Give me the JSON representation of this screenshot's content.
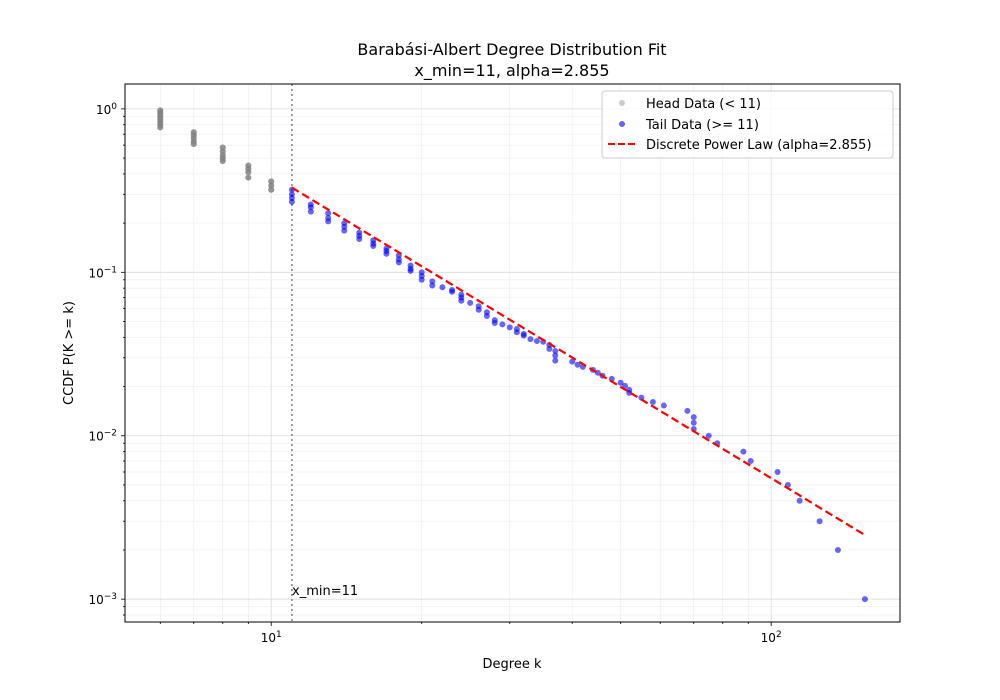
{
  "chart_data": {
    "type": "scatter",
    "title": "Barabási-Albert Degree Distribution Fit",
    "subtitle": "x_min=11, alpha=2.855",
    "xlabel": "Degree k",
    "ylabel": "CCDF P(K >= k)",
    "xscale": "log",
    "yscale": "log",
    "xlim": [
      5.1,
      181
    ],
    "ylim": [
      0.000725,
      1.42
    ],
    "grid": true,
    "legend_position": "top-right",
    "x_ticks": [
      {
        "base": "10",
        "exp": "1",
        "value": 10
      },
      {
        "base": "10",
        "exp": "2",
        "value": 100
      }
    ],
    "y_ticks": [
      {
        "base": "10",
        "exp": "0",
        "value": 1
      },
      {
        "base": "10",
        "exp": "−1",
        "value": 0.1
      },
      {
        "base": "10",
        "exp": "−2",
        "value": 0.01
      },
      {
        "base": "10",
        "exp": "−3",
        "value": 0.001
      }
    ],
    "x_min": 11,
    "alpha": 2.855,
    "annotation": "x_min=11",
    "series": [
      {
        "name": "Head Data (< 11)",
        "color": "#808080",
        "points": [
          [
            6,
            0.98
          ],
          [
            6,
            0.95
          ],
          [
            6,
            0.92
          ],
          [
            6,
            0.89
          ],
          [
            6,
            0.86
          ],
          [
            6,
            0.83
          ],
          [
            6,
            0.8
          ],
          [
            6,
            0.77
          ],
          [
            7,
            0.72
          ],
          [
            7,
            0.69
          ],
          [
            7,
            0.66
          ],
          [
            7,
            0.63
          ],
          [
            7,
            0.61
          ],
          [
            8,
            0.58
          ],
          [
            8,
            0.55
          ],
          [
            8,
            0.52
          ],
          [
            8,
            0.5
          ],
          [
            8,
            0.48
          ],
          [
            9,
            0.45
          ],
          [
            9,
            0.43
          ],
          [
            9,
            0.41
          ],
          [
            9,
            0.38
          ],
          [
            10,
            0.36
          ],
          [
            10,
            0.34
          ],
          [
            10,
            0.32
          ]
        ]
      },
      {
        "name": "Tail Data (>= 11)",
        "color": "#0000ff",
        "points": [
          [
            11,
            0.32
          ],
          [
            11,
            0.3
          ],
          [
            11,
            0.285
          ],
          [
            11,
            0.27
          ],
          [
            12,
            0.26
          ],
          [
            12,
            0.25
          ],
          [
            12,
            0.235
          ],
          [
            13,
            0.23
          ],
          [
            13,
            0.215
          ],
          [
            13,
            0.205
          ],
          [
            14,
            0.2
          ],
          [
            14,
            0.19
          ],
          [
            14,
            0.18
          ],
          [
            15,
            0.175
          ],
          [
            15,
            0.167
          ],
          [
            15,
            0.16
          ],
          [
            16,
            0.157
          ],
          [
            16,
            0.15
          ],
          [
            16,
            0.145
          ],
          [
            17,
            0.14
          ],
          [
            17,
            0.135
          ],
          [
            17,
            0.13
          ],
          [
            18,
            0.127
          ],
          [
            18,
            0.12
          ],
          [
            18,
            0.115
          ],
          [
            19,
            0.11
          ],
          [
            19,
            0.105
          ],
          [
            19,
            0.102
          ],
          [
            20,
            0.1
          ],
          [
            20,
            0.095
          ],
          [
            20,
            0.09
          ],
          [
            21,
            0.088
          ],
          [
            21,
            0.083
          ],
          [
            22,
            0.081
          ],
          [
            23,
            0.078
          ],
          [
            23,
            0.076
          ],
          [
            24,
            0.073
          ],
          [
            24,
            0.07
          ],
          [
            24,
            0.067
          ],
          [
            25,
            0.065
          ],
          [
            26,
            0.062
          ],
          [
            26,
            0.059
          ],
          [
            27,
            0.057
          ],
          [
            27,
            0.054
          ],
          [
            28,
            0.051
          ],
          [
            28,
            0.049
          ],
          [
            29,
            0.048
          ],
          [
            30,
            0.046
          ],
          [
            31,
            0.045
          ],
          [
            31,
            0.043
          ],
          [
            32,
            0.042
          ],
          [
            32,
            0.041
          ],
          [
            33,
            0.039
          ],
          [
            34,
            0.038
          ],
          [
            35,
            0.0376
          ],
          [
            36,
            0.036
          ],
          [
            36,
            0.034
          ],
          [
            37,
            0.033
          ],
          [
            37,
            0.031
          ],
          [
            37,
            0.0288
          ],
          [
            40,
            0.0284
          ],
          [
            41,
            0.0272
          ],
          [
            42,
            0.0264
          ],
          [
            44,
            0.0253
          ],
          [
            45,
            0.0243
          ],
          [
            46,
            0.0233
          ],
          [
            48,
            0.0223
          ],
          [
            50,
            0.0211
          ],
          [
            51,
            0.0202
          ],
          [
            52,
            0.0191
          ],
          [
            52,
            0.0183
          ],
          [
            55,
            0.0171
          ],
          [
            58,
            0.0161
          ],
          [
            61,
            0.0153
          ],
          [
            68,
            0.0142
          ],
          [
            70,
            0.013
          ],
          [
            70,
            0.012
          ],
          [
            70,
            0.011
          ],
          [
            75,
            0.01
          ],
          [
            78,
            0.009
          ],
          [
            88,
            0.008
          ],
          [
            91,
            0.007
          ],
          [
            103,
            0.006
          ],
          [
            108,
            0.005
          ],
          [
            114,
            0.004
          ],
          [
            125,
            0.003
          ],
          [
            136,
            0.002
          ],
          [
            154,
            0.001
          ]
        ]
      },
      {
        "name": "Discrete Power Law (alpha=2.855)",
        "color": "#ff0000",
        "type": "line",
        "x_range": [
          11,
          154
        ],
        "y_at_xmin": 0.33
      }
    ]
  }
}
